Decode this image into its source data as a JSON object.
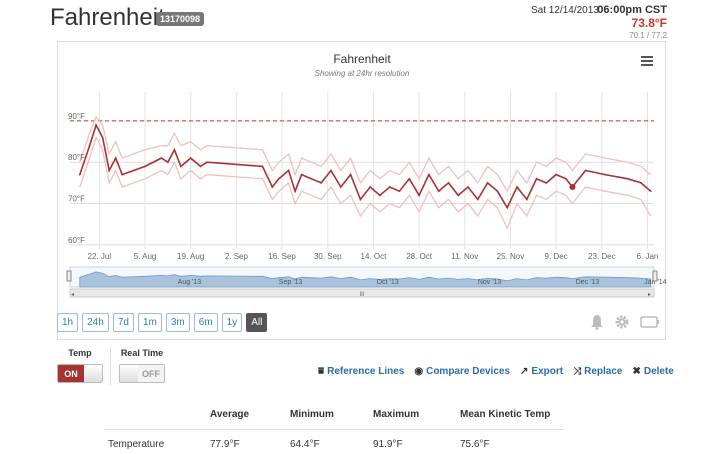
{
  "header": {
    "title": "Fahrenheit",
    "device_id": "13170098",
    "date": "Sat 12/14/2013",
    "time": "06:00pm CST",
    "current_temp": "73.8°F",
    "temp_range": "70.1 / 77.2"
  },
  "chart": {
    "title": "Fahrenheit",
    "subtitle": "Showing at 24hr resolution",
    "menu_icon": "hamburger-menu-icon",
    "y_ticks": [
      "90°F",
      "80°F",
      "70°F",
      "60°F"
    ],
    "x_ticks": [
      "22. Jul",
      "5. Aug",
      "19. Aug",
      "2. Sep",
      "16. Sep",
      "30. Sep",
      "14. Oct",
      "28. Oct",
      "11. Nov",
      "25. Nov",
      "9. Dec",
      "23. Dec",
      "6. Jan"
    ],
    "navigator_labels": [
      "Aug '13",
      "Sep '13",
      "Oct '13",
      "Nov '13",
      "Dec '13",
      "Jan '14"
    ],
    "scrollbar_grip": "III",
    "colors": {
      "line": "#a83232",
      "band": "#f0c0c0",
      "threshold": "#c0392b",
      "navigator_fill": "#a9c3dc"
    }
  },
  "chart_data": {
    "type": "line",
    "title": "Fahrenheit",
    "subtitle": "Showing at 24hr resolution",
    "y_unit": "°F",
    "ylim": [
      59,
      97
    ],
    "reference_line": 90,
    "x": [
      "2013-07-16",
      "2013-07-19",
      "2013-07-21",
      "2013-07-23",
      "2013-07-25",
      "2013-07-27",
      "2013-07-29",
      "2013-08-05",
      "2013-08-10",
      "2013-08-12",
      "2013-08-14",
      "2013-08-16",
      "2013-08-19",
      "2013-08-22",
      "2013-08-24",
      "2013-09-10",
      "2013-09-13",
      "2013-09-15",
      "2013-09-18",
      "2013-09-20",
      "2013-09-22",
      "2013-09-25",
      "2013-09-28",
      "2013-10-01",
      "2013-10-04",
      "2013-10-07",
      "2013-10-10",
      "2013-10-13",
      "2013-10-16",
      "2013-10-19",
      "2013-10-22",
      "2013-10-25",
      "2013-10-28",
      "2013-10-31",
      "2013-11-03",
      "2013-11-06",
      "2013-11-09",
      "2013-11-12",
      "2013-11-15",
      "2013-11-18",
      "2013-11-21",
      "2013-11-24",
      "2013-11-27",
      "2013-11-30",
      "2013-12-03",
      "2013-12-06",
      "2013-12-09",
      "2013-12-12",
      "2013-12-14",
      "2013-12-18",
      "2013-12-24",
      "2013-12-31",
      "2014-01-04",
      "2014-01-07"
    ],
    "series": [
      {
        "values": [
          77,
          84,
          89,
          86,
          78,
          81,
          77,
          79,
          81,
          80,
          83,
          79,
          81,
          79,
          80,
          79,
          74,
          76,
          78,
          73,
          77,
          76,
          75,
          78,
          74,
          77,
          71,
          74,
          72,
          74,
          73,
          76,
          72,
          77,
          73,
          75,
          72,
          74,
          71,
          75,
          73,
          69,
          74,
          71,
          76,
          75,
          77,
          76,
          74,
          78,
          77,
          76,
          75,
          73
        ]
      },
      {
        "values": [
          80,
          87,
          91,
          89,
          82,
          85,
          81,
          83,
          84,
          84,
          87,
          84,
          85,
          83,
          84,
          83,
          78,
          80,
          82,
          77,
          81,
          80,
          79,
          82,
          78,
          81,
          75,
          78,
          76,
          78,
          77,
          80,
          76,
          81,
          77,
          79,
          76,
          78,
          75,
          79,
          77,
          73,
          78,
          75,
          80,
          79,
          81,
          80,
          78,
          82,
          81,
          80,
          79,
          77
        ]
      },
      {
        "values": [
          74,
          81,
          86,
          83,
          75,
          78,
          74,
          76,
          78,
          77,
          80,
          76,
          78,
          76,
          77,
          76,
          71,
          73,
          75,
          70,
          73,
          72,
          71,
          74,
          70,
          72,
          67,
          70,
          68,
          70,
          69,
          72,
          68,
          73,
          69,
          71,
          68,
          70,
          67,
          71,
          69,
          64,
          70,
          67,
          72,
          71,
          73,
          72,
          70,
          74,
          73,
          72,
          71,
          67
        ]
      }
    ]
  },
  "ranges": {
    "buttons": [
      "1h",
      "24h",
      "7d",
      "1m",
      "3m",
      "6m",
      "1y",
      "All"
    ],
    "active": "All"
  },
  "toolbar_icons": [
    "bell-icon",
    "gear-icon",
    "battery-icon"
  ],
  "toggles": {
    "temp": {
      "label": "Temp",
      "state": "ON"
    },
    "realtime": {
      "label": "Real Time",
      "state": "OFF"
    }
  },
  "actions": [
    {
      "label": "Reference Lines",
      "icon": "reference-lines-icon"
    },
    {
      "label": "Compare Devices",
      "icon": "eye-icon"
    },
    {
      "label": "Export",
      "icon": "share-arrow-icon"
    },
    {
      "label": "Replace",
      "icon": "shuffle-icon"
    },
    {
      "label": "Delete",
      "icon": "close-icon"
    }
  ],
  "stats": {
    "headers": [
      "Average",
      "Minimum",
      "Maximum",
      "Mean Kinetic Temp"
    ],
    "rows": [
      {
        "label": "Temperature",
        "values": [
          "77.9°F",
          "64.4°F",
          "91.9°F",
          "75.6°F"
        ]
      }
    ]
  }
}
